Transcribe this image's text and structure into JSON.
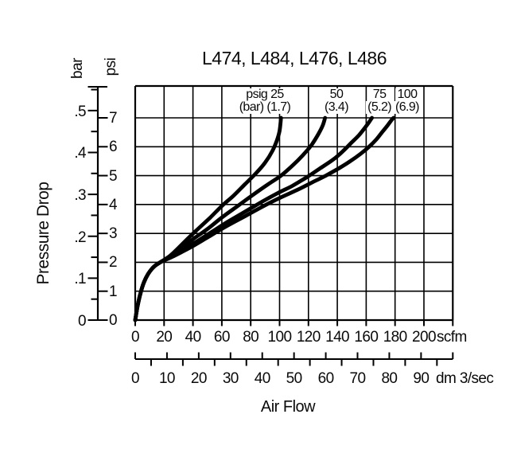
{
  "title": "L474, L484, L476, L486",
  "pressure_axis": {
    "label": "Pressure Drop",
    "left_unit": "bar",
    "right_unit": "psi",
    "bar_tick_labels": [
      "0",
      ".1",
      ".2",
      ".3",
      ".4",
      ".5"
    ],
    "psi_tick_labels": [
      "0",
      "1",
      "2",
      "3",
      "4",
      "5",
      "6",
      "7"
    ]
  },
  "flow_axis": {
    "label": "Air Flow",
    "scfm_unit": "scfm",
    "dm_unit": "dm 3/sec",
    "scfm_tick_labels": [
      "0",
      "20",
      "40",
      "60",
      "80",
      "100",
      "120",
      "140",
      "160",
      "180",
      "200"
    ],
    "dm_tick_labels": [
      "0",
      "10",
      "20",
      "30",
      "40",
      "50",
      "60",
      "70",
      "80",
      "90"
    ]
  },
  "chart_data": {
    "type": "line",
    "title": "L474, L484, L476, L486",
    "xlabel": "Air Flow",
    "ylabel": "Pressure Drop",
    "x_unit_primary": "scfm",
    "x_unit_secondary": "dm 3/sec",
    "y_unit_left": "bar",
    "y_unit_right": "psi",
    "xlim_scfm": [
      0,
      220
    ],
    "ylim_psi": [
      0,
      8.1
    ],
    "x_gridline_step_scfm": 20,
    "y_gridline_step_psi": 1,
    "bar_axis": {
      "min": 0,
      "max": 0.55,
      "major_step": 0.1,
      "minor_step": 0.05
    },
    "secondary_x_scale_dm": {
      "min": 0,
      "max": 100,
      "major_step": 10,
      "minor_step": 5
    },
    "grid": true,
    "line_color": "#000000",
    "series": [
      {
        "name": "psig 25 (1.7 bar)",
        "label_line1": "psig 25",
        "label_line2": "(bar) (1.7)",
        "label_anchor_scfm": 89.8,
        "points_scfm_psi": [
          [
            0,
            0
          ],
          [
            1.5,
            0.45
          ],
          [
            3.5,
            0.9
          ],
          [
            6,
            1.3
          ],
          [
            9,
            1.6
          ],
          [
            13,
            1.85
          ],
          [
            18,
            2.02
          ],
          [
            24,
            2.22
          ],
          [
            30,
            2.5
          ],
          [
            37,
            2.85
          ],
          [
            44,
            3.18
          ],
          [
            52,
            3.55
          ],
          [
            60,
            3.95
          ],
          [
            68,
            4.3
          ],
          [
            76,
            4.7
          ],
          [
            84,
            5.1
          ],
          [
            90,
            5.45
          ],
          [
            95,
            5.85
          ],
          [
            98,
            6.2
          ],
          [
            100,
            6.55
          ],
          [
            101,
            7.0
          ]
        ]
      },
      {
        "name": "psig 50 (3.4 bar)",
        "label_line1": "50",
        "label_line2": "(3.4)",
        "label_anchor_scfm": 139.4,
        "points_scfm_psi": [
          [
            0,
            0
          ],
          [
            1.5,
            0.45
          ],
          [
            3.5,
            0.9
          ],
          [
            6,
            1.3
          ],
          [
            9,
            1.6
          ],
          [
            13,
            1.85
          ],
          [
            18,
            2.02
          ],
          [
            24,
            2.2
          ],
          [
            31,
            2.45
          ],
          [
            40,
            2.8
          ],
          [
            50,
            3.15
          ],
          [
            60,
            3.55
          ],
          [
            71,
            3.95
          ],
          [
            82,
            4.35
          ],
          [
            92,
            4.7
          ],
          [
            101,
            5.0
          ],
          [
            109,
            5.35
          ],
          [
            116,
            5.7
          ],
          [
            122,
            6.05
          ],
          [
            127,
            6.45
          ],
          [
            130,
            6.75
          ],
          [
            131.5,
            7.0
          ]
        ]
      },
      {
        "name": "psig 75 (5.2 bar)",
        "label_line1": "75",
        "label_line2": "(5.2)",
        "label_anchor_scfm": 169.2,
        "points_scfm_psi": [
          [
            0,
            0
          ],
          [
            1.5,
            0.45
          ],
          [
            3.5,
            0.9
          ],
          [
            6,
            1.3
          ],
          [
            9,
            1.6
          ],
          [
            13,
            1.85
          ],
          [
            18,
            2.02
          ],
          [
            24,
            2.18
          ],
          [
            32,
            2.4
          ],
          [
            42,
            2.7
          ],
          [
            53,
            3.05
          ],
          [
            64,
            3.4
          ],
          [
            76,
            3.75
          ],
          [
            88,
            4.1
          ],
          [
            99,
            4.4
          ],
          [
            109,
            4.65
          ],
          [
            119,
            4.95
          ],
          [
            128,
            5.25
          ],
          [
            137,
            5.55
          ],
          [
            144,
            5.85
          ],
          [
            150,
            6.15
          ],
          [
            155,
            6.4
          ],
          [
            159,
            6.65
          ],
          [
            162,
            6.85
          ],
          [
            164,
            7.0
          ]
        ]
      },
      {
        "name": "psig 100 (6.9 bar)",
        "label_line1": "100",
        "label_line2": "(6.9)",
        "label_anchor_scfm": 188.4,
        "points_scfm_psi": [
          [
            0,
            0
          ],
          [
            1.5,
            0.45
          ],
          [
            3.5,
            0.9
          ],
          [
            6,
            1.3
          ],
          [
            9,
            1.6
          ],
          [
            13,
            1.85
          ],
          [
            18,
            2.02
          ],
          [
            24,
            2.15
          ],
          [
            32,
            2.35
          ],
          [
            42,
            2.62
          ],
          [
            53,
            2.95
          ],
          [
            65,
            3.3
          ],
          [
            77,
            3.62
          ],
          [
            89,
            3.95
          ],
          [
            101,
            4.25
          ],
          [
            112,
            4.5
          ],
          [
            122,
            4.75
          ],
          [
            132,
            5.0
          ],
          [
            141,
            5.25
          ],
          [
            149,
            5.5
          ],
          [
            156,
            5.75
          ],
          [
            162,
            6.0
          ],
          [
            167,
            6.25
          ],
          [
            171,
            6.5
          ],
          [
            175,
            6.75
          ],
          [
            178,
            6.95
          ],
          [
            179,
            7.0
          ]
        ]
      }
    ]
  }
}
